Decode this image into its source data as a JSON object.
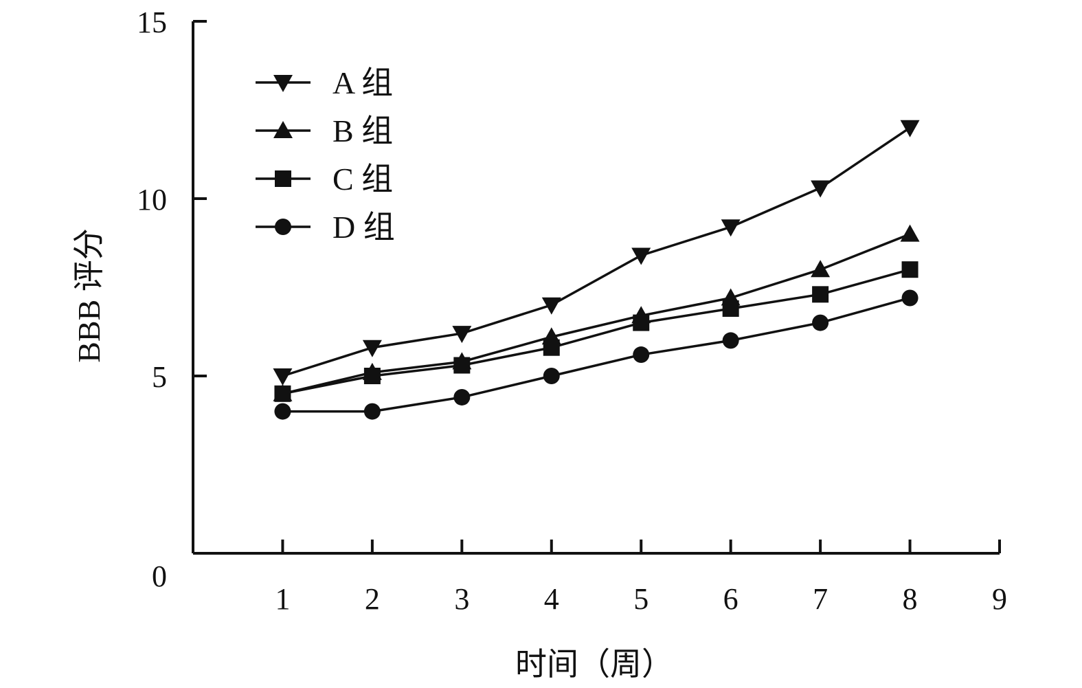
{
  "chart_data": {
    "type": "line",
    "title": "",
    "xlabel": "时间（周）",
    "ylabel": "BBB 评分",
    "x": [
      1,
      2,
      3,
      4,
      5,
      6,
      7,
      8
    ],
    "xlim": [
      0,
      9
    ],
    "ylim": [
      0,
      15
    ],
    "x_ticks": [
      "1",
      "2",
      "3",
      "4",
      "5",
      "6",
      "7",
      "8",
      "9"
    ],
    "y_ticks": [
      "0",
      "5",
      "10",
      "15"
    ],
    "grid": false,
    "legend_position": "top-left",
    "series": [
      {
        "name": "A 组",
        "marker": "triangle-down",
        "values": [
          5.0,
          5.8,
          6.2,
          7.0,
          8.4,
          9.2,
          10.3,
          12.0
        ]
      },
      {
        "name": "B 组",
        "marker": "triangle-up",
        "values": [
          4.5,
          5.1,
          5.4,
          6.1,
          6.7,
          7.2,
          8.0,
          9.0
        ]
      },
      {
        "name": "C 组",
        "marker": "square",
        "values": [
          4.5,
          5.0,
          5.3,
          5.8,
          6.5,
          6.9,
          7.3,
          8.0
        ]
      },
      {
        "name": "D 组",
        "marker": "circle",
        "values": [
          4.0,
          4.0,
          4.4,
          5.0,
          5.6,
          6.0,
          6.5,
          7.2
        ]
      }
    ],
    "colors": {
      "line": "#111111",
      "background": "#ffffff"
    }
  }
}
